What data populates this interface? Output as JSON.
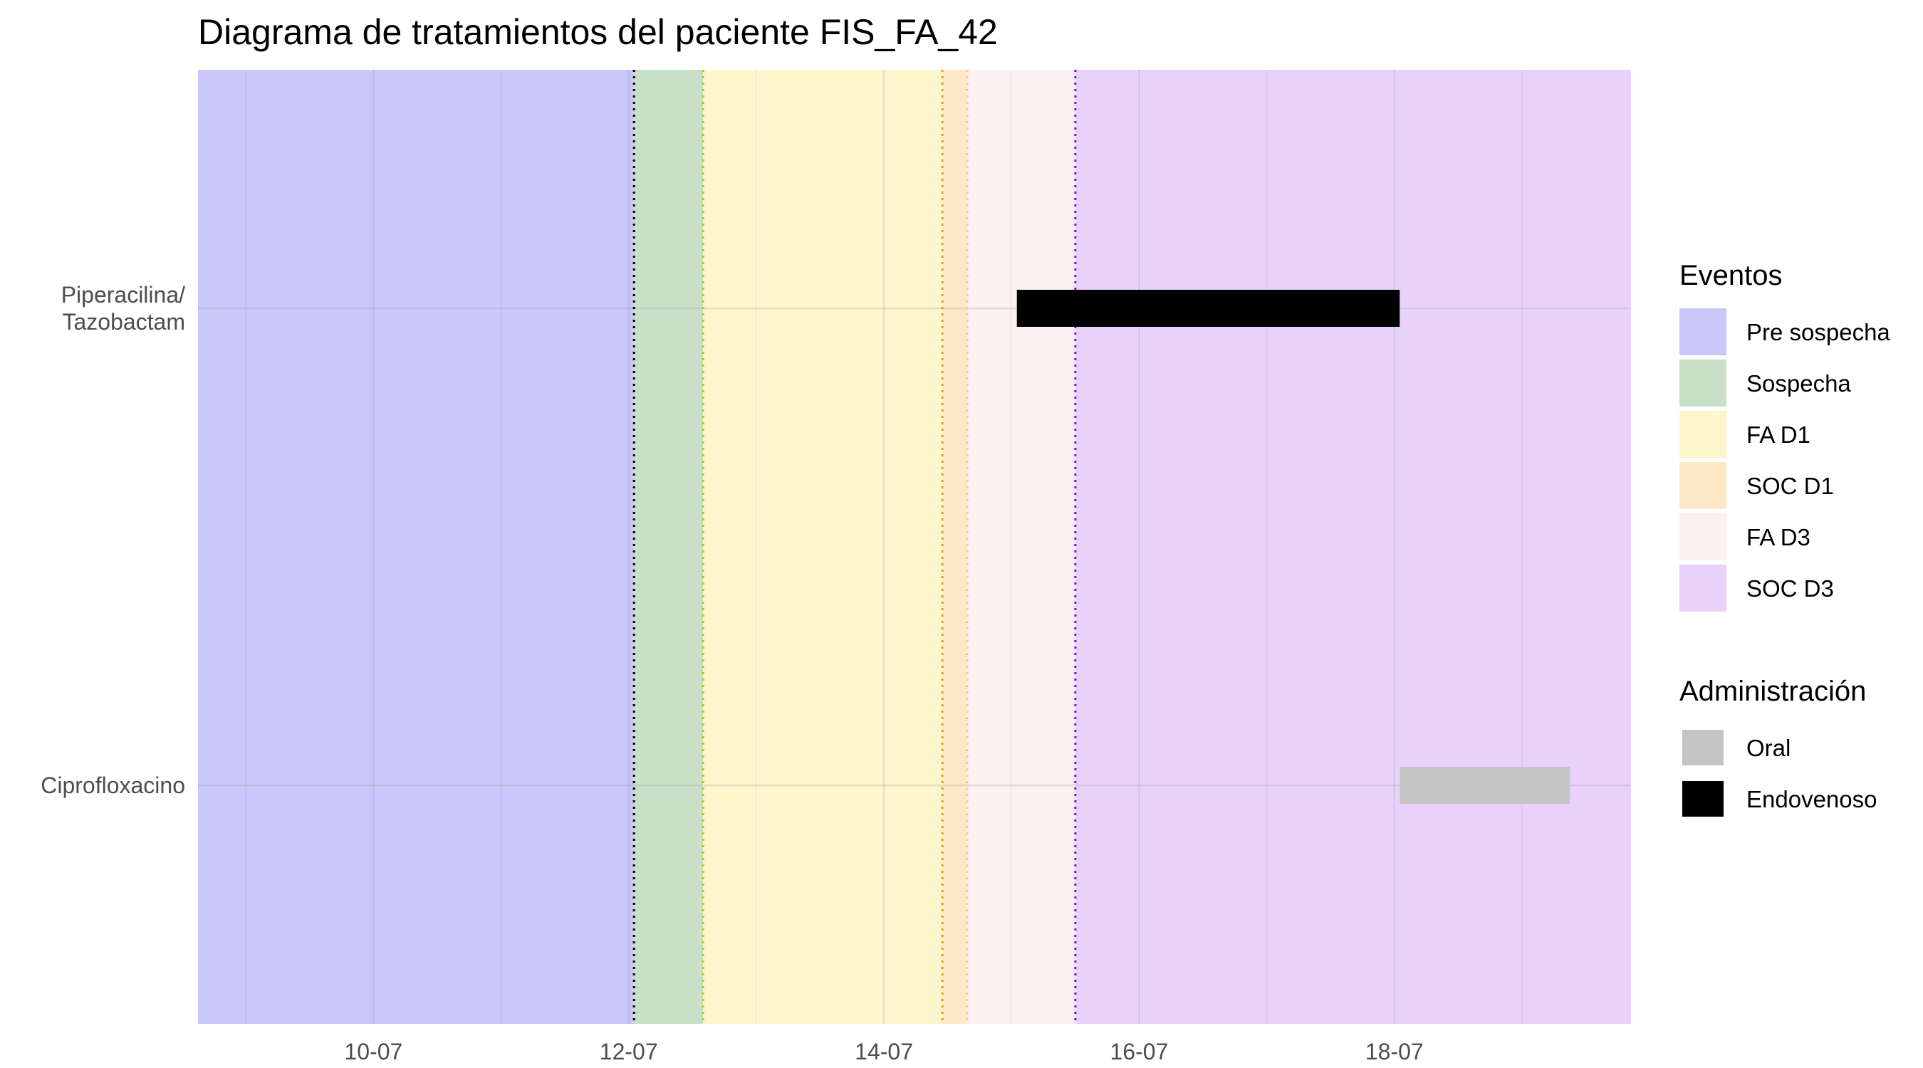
{
  "chart_data": {
    "type": "gantt",
    "title": "Diagrama de tratamientos del paciente FIS_FA_42",
    "xlabel": "",
    "ylabel": "",
    "x_axis": {
      "type": "date",
      "min": "2024-07-08T15:00",
      "max": "2024-07-19T20:30",
      "ticks": [
        {
          "date": "2024-07-10T00:00",
          "label": "10-07"
        },
        {
          "date": "2024-07-12T00:00",
          "label": "12-07"
        },
        {
          "date": "2024-07-14T00:00",
          "label": "14-07"
        },
        {
          "date": "2024-07-16T00:00",
          "label": "16-07"
        },
        {
          "date": "2024-07-18T00:00",
          "label": "18-07"
        }
      ],
      "minor_ticks": [
        "2024-07-09T00:00",
        "2024-07-11T00:00",
        "2024-07-13T00:00",
        "2024-07-15T00:00",
        "2024-07-17T00:00",
        "2024-07-19T00:00"
      ]
    },
    "categories": [
      "Piperacilina/\nTazobactam",
      "Ciprofloxacino"
    ],
    "event_periods": [
      {
        "name": "Pre sospecha",
        "start": "2024-07-08T15:00",
        "end": "2024-07-12T01:00",
        "color": "#c8c8fa"
      },
      {
        "name": "Sospecha",
        "start": "2024-07-12T01:00",
        "end": "2024-07-12T14:00",
        "color": "#c8e0c8"
      },
      {
        "name": "FA D1",
        "start": "2024-07-12T14:00",
        "end": "2024-07-14T11:00",
        "color": "#fdf5cc"
      },
      {
        "name": "SOC D1",
        "start": "2024-07-14T11:00",
        "end": "2024-07-14T15:40",
        "color": "#fde8c8"
      },
      {
        "name": "FA D3",
        "start": "2024-07-14T15:40",
        "end": "2024-07-15T12:00",
        "color": "#fdf0f0"
      },
      {
        "name": "SOC D3",
        "start": "2024-07-15T12:00",
        "end": "2024-07-19T20:30",
        "color": "#e8d2fa"
      }
    ],
    "event_markers": [
      {
        "date": "2024-07-12T01:00",
        "color": "#000000"
      },
      {
        "date": "2024-07-12T14:00",
        "color": "#b5c800"
      },
      {
        "date": "2024-07-14T11:00",
        "color": "#e0a020"
      },
      {
        "date": "2024-07-14T15:40",
        "color": "#f0c8a8"
      },
      {
        "date": "2024-07-15T12:00",
        "color": "#8a00ff"
      }
    ],
    "treatments": [
      {
        "drug": "Piperacilina/\nTazobactam",
        "start": "2024-07-15T01:00",
        "end": "2024-07-18T01:00",
        "route": "Endovenoso"
      },
      {
        "drug": "Ciprofloxacino",
        "start": "2024-07-18T01:00",
        "end": "2024-07-19T09:00",
        "route": "Oral"
      }
    ],
    "legends": [
      {
        "title": "Eventos",
        "items": [
          {
            "label": "Pre sospecha",
            "color": "#c8c8fa"
          },
          {
            "label": "Sospecha",
            "color": "#c8e0c8"
          },
          {
            "label": "FA D1",
            "color": "#fdf5cc"
          },
          {
            "label": "SOC D1",
            "color": "#fde8c8"
          },
          {
            "label": "FA D3",
            "color": "#fdf0f0"
          },
          {
            "label": "SOC D3",
            "color": "#e8d2fa"
          }
        ]
      },
      {
        "title": "Administración",
        "items": [
          {
            "label": "Oral",
            "color": "#c4c4c4"
          },
          {
            "label": "Endovenoso",
            "color": "#000000"
          }
        ]
      }
    ],
    "legend_position": "right",
    "grid": true
  }
}
